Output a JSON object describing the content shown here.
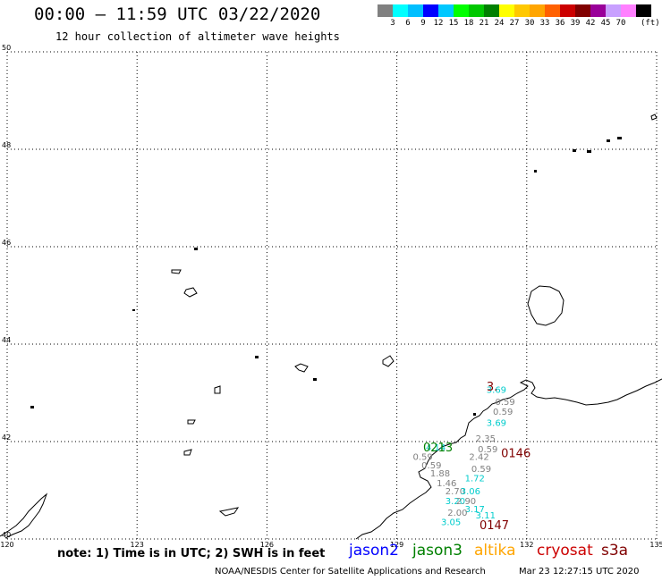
{
  "header": {
    "title": "00:00 – 11:59 UTC 03/22/2020",
    "subtitle": "12 hour collection of altimeter wave heights"
  },
  "color_scale": {
    "colors": [
      "#808080",
      "#00ffff",
      "#00bfff",
      "#0000ff",
      "#00c8ff",
      "#00ff00",
      "#00c800",
      "#008000",
      "#ffff00",
      "#ffc800",
      "#ffa500",
      "#ff6000",
      "#cc0000",
      "#800000",
      "#990099",
      "#c8a0ff",
      "#ff80ff",
      "#000000"
    ],
    "labels": [
      "3",
      "6",
      "9",
      "12",
      "15",
      "18",
      "21",
      "24",
      "27",
      "30",
      "33",
      "36",
      "39",
      "42",
      "45",
      "70"
    ],
    "unit": "(ft)"
  },
  "map": {
    "lon_ticks": [
      "120",
      "123",
      "126",
      "129",
      "132",
      "135"
    ],
    "lat_ticks": [
      "40",
      "42",
      "44",
      "46",
      "48",
      "50"
    ],
    "lon_range": [
      120,
      135
    ],
    "lat_range": [
      40,
      50
    ]
  },
  "observations": [
    {
      "text": "3.69",
      "color": "#00cccc",
      "lon": 131.3,
      "lat": 43.0
    },
    {
      "text": "0.59",
      "color": "#808080",
      "lon": 131.5,
      "lat": 42.75
    },
    {
      "text": "0.59",
      "color": "#808080",
      "lon": 131.45,
      "lat": 42.55
    },
    {
      "text": "3.69",
      "color": "#00cccc",
      "lon": 131.3,
      "lat": 42.32
    },
    {
      "text": "2.35",
      "color": "#808080",
      "lon": 131.05,
      "lat": 42.0
    },
    {
      "text": "4.14",
      "color": "#00cccc",
      "lon": 129.9,
      "lat": 41.82
    },
    {
      "text": "0.59",
      "color": "#808080",
      "lon": 131.1,
      "lat": 41.78
    },
    {
      "text": "2.42",
      "color": "#808080",
      "lon": 130.9,
      "lat": 41.62
    },
    {
      "text": "0.59",
      "color": "#808080",
      "lon": 129.6,
      "lat": 41.62
    },
    {
      "text": "0.59",
      "color": "#808080",
      "lon": 129.8,
      "lat": 41.45
    },
    {
      "text": "0.59",
      "color": "#808080",
      "lon": 130.95,
      "lat": 41.38
    },
    {
      "text": "1.88",
      "color": "#808080",
      "lon": 130.0,
      "lat": 41.28
    },
    {
      "text": "1.72",
      "color": "#00cccc",
      "lon": 130.8,
      "lat": 41.18
    },
    {
      "text": "1.46",
      "color": "#808080",
      "lon": 130.15,
      "lat": 41.08
    },
    {
      "text": "2.70",
      "color": "#808080",
      "lon": 130.35,
      "lat": 40.92
    },
    {
      "text": "3.06",
      "color": "#00cccc",
      "lon": 130.7,
      "lat": 40.92
    },
    {
      "text": "3.20",
      "color": "#00cccc",
      "lon": 130.35,
      "lat": 40.72
    },
    {
      "text": "2.90",
      "color": "#808080",
      "lon": 130.6,
      "lat": 40.72
    },
    {
      "text": "3.17",
      "color": "#00cccc",
      "lon": 130.8,
      "lat": 40.55
    },
    {
      "text": "2.00",
      "color": "#808080",
      "lon": 130.4,
      "lat": 40.48
    },
    {
      "text": "3.11",
      "color": "#00cccc",
      "lon": 131.05,
      "lat": 40.42
    },
    {
      "text": "3.05",
      "color": "#00cccc",
      "lon": 130.25,
      "lat": 40.28
    }
  ],
  "passes": [
    {
      "text": "0213",
      "color": "#008000",
      "lon": 129.95,
      "lat": 41.8
    },
    {
      "text": "0146",
      "color": "#800000",
      "lon": 131.75,
      "lat": 41.68
    },
    {
      "text": "0147",
      "color": "#800000",
      "lon": 131.25,
      "lat": 40.2
    },
    {
      "text": "3.",
      "color": "#800000",
      "lon": 131.2,
      "lat": 43.05
    }
  ],
  "footer": {
    "note": "note: 1) Time is in UTC; 2) SWH is in feet",
    "legend": [
      {
        "label": "jason2",
        "color": "#0000ff"
      },
      {
        "label": "jason3",
        "color": "#008000"
      },
      {
        "label": "altika",
        "color": "#ffa500"
      },
      {
        "label": "cryosat",
        "color": "#cc0000"
      },
      {
        "label": "s3a",
        "color": "#800000"
      }
    ],
    "credit": "NOAA/NESDIS Center for Satellite Applications and Research",
    "timestamp": "Mar 23 12:27:15 UTC 2020"
  }
}
